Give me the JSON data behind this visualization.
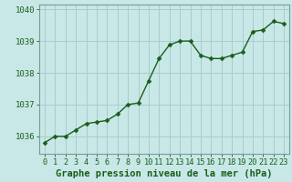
{
  "x": [
    0,
    1,
    2,
    3,
    4,
    5,
    6,
    7,
    8,
    9,
    10,
    11,
    12,
    13,
    14,
    15,
    16,
    17,
    18,
    19,
    20,
    21,
    22,
    23
  ],
  "y": [
    1035.8,
    1036.0,
    1036.0,
    1036.2,
    1036.4,
    1036.45,
    1036.5,
    1036.7,
    1037.0,
    1037.05,
    1037.75,
    1038.45,
    1038.88,
    1039.0,
    1039.0,
    1038.55,
    1038.45,
    1038.45,
    1038.55,
    1038.65,
    1039.3,
    1039.35,
    1039.62,
    1039.55
  ],
  "background_color": "#c8e8e8",
  "grid_color": "#aacccc",
  "line_color": "#1a5e1a",
  "marker_color": "#1a5e1a",
  "title": "Graphe pression niveau de la mer (hPa)",
  "ytick_labels": [
    "1036",
    "1037",
    "1038",
    "1039",
    "1040"
  ],
  "yticks": [
    1036,
    1037,
    1038,
    1039,
    1040
  ],
  "ylim": [
    1035.45,
    1040.15
  ],
  "xlim": [
    -0.5,
    23.5
  ],
  "tick_fontsize": 6.5,
  "title_fontsize": 7.5,
  "line_color_dark": "#1a5e1a",
  "spine_color": "#7a9a9a"
}
